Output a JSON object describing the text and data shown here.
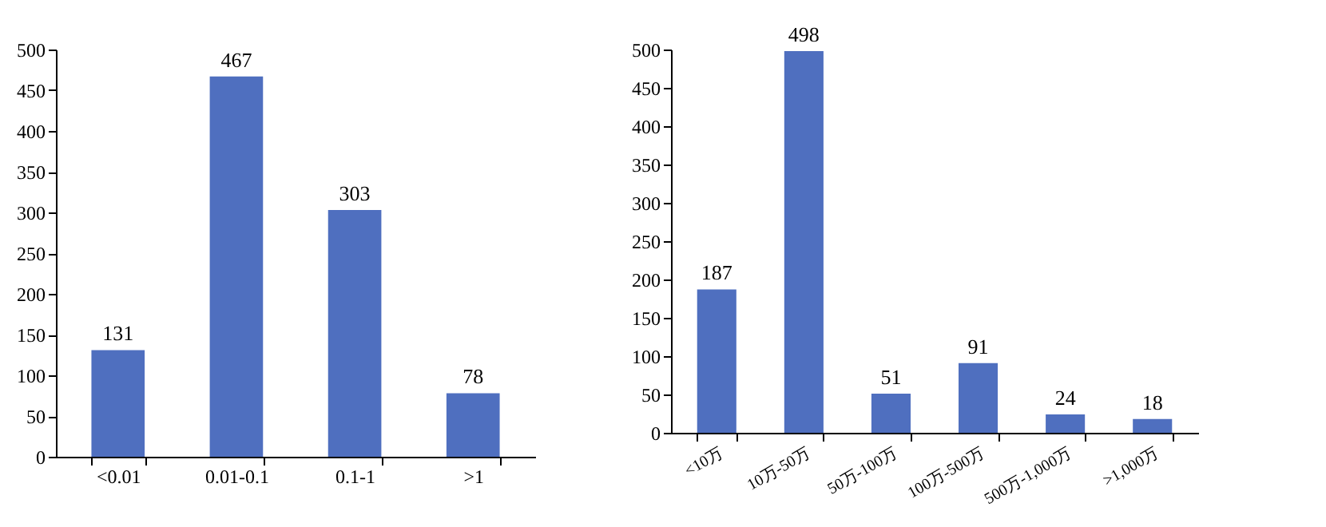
{
  "chart_data": [
    {
      "type": "bar",
      "categories": [
        "<0.01",
        "0.01-0.1",
        "0.1-1",
        ">1"
      ],
      "values": [
        131,
        467,
        303,
        78
      ],
      "color": "#4f6fbf",
      "ylim": [
        0,
        500
      ],
      "yticks": [
        0,
        50,
        100,
        150,
        200,
        250,
        300,
        350,
        400,
        450,
        500
      ],
      "data_labels": true
    },
    {
      "type": "bar",
      "categories": [
        "<10万",
        "10万-50万",
        "50万-100万",
        "100万-500万",
        "500万-1,000万",
        ">1,000万"
      ],
      "values": [
        187,
        498,
        51,
        91,
        24,
        18
      ],
      "color": "#4f6fbf",
      "ylim": [
        0,
        500
      ],
      "yticks": [
        0,
        50,
        100,
        150,
        200,
        250,
        300,
        350,
        400,
        450,
        500
      ],
      "data_labels": true
    }
  ]
}
